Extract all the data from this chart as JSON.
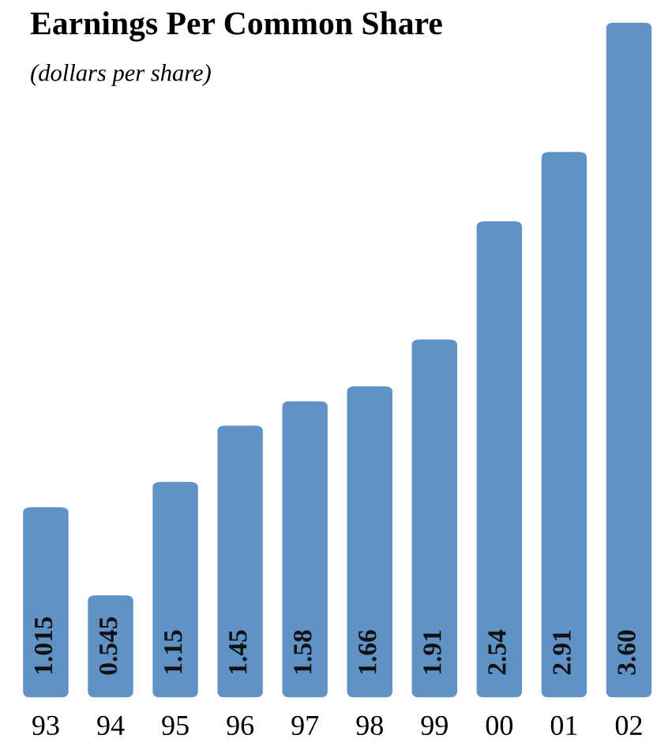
{
  "chart_data": {
    "type": "bar",
    "title": "Earnings Per Common Share",
    "subtitle": "(dollars per share)",
    "categories": [
      "93",
      "94",
      "95",
      "96",
      "97",
      "98",
      "99",
      "00",
      "01",
      "02"
    ],
    "values": [
      1.015,
      0.545,
      1.15,
      1.45,
      1.58,
      1.66,
      1.91,
      2.54,
      2.91,
      3.6
    ],
    "value_labels": [
      "1.015",
      "0.545",
      "1.15",
      "1.45",
      "1.58",
      "1.66",
      "1.91",
      "2.54",
      "2.91",
      "3.60"
    ],
    "color": "#6192c5"
  }
}
